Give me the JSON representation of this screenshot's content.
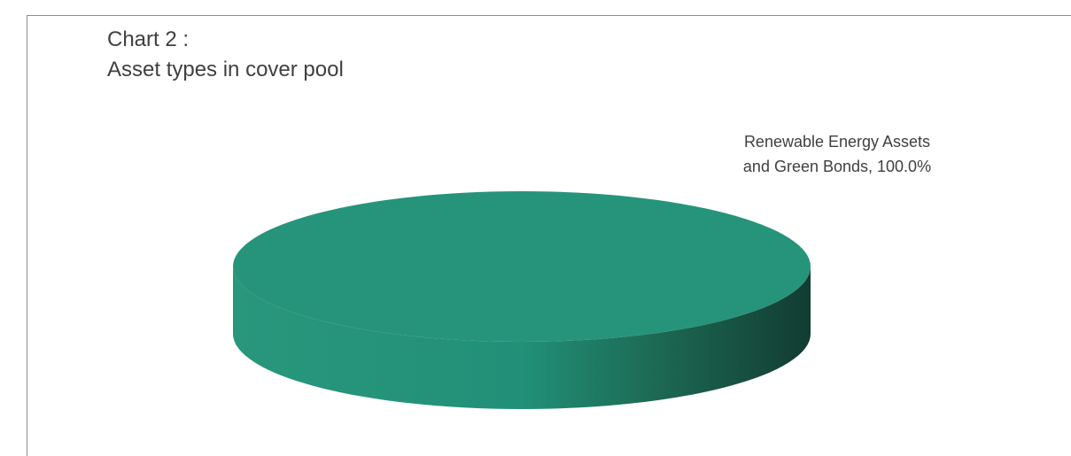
{
  "chart_data": {
    "type": "pie",
    "title_line1": "Chart 2 :",
    "title_line2": "Asset types in cover pool",
    "categories": [
      "Renewable Energy Assets and Green Bonds"
    ],
    "values": [
      100.0
    ],
    "labels": [
      {
        "line1": "Renewable Energy Assets",
        "line2": "and Green Bonds, 100.0%"
      }
    ],
    "legend": "none",
    "colors": {
      "top": "#26947a",
      "side_light": "#28977c",
      "side_dark": "#123c31",
      "text": "#404040",
      "frame": "#8c8c8c"
    }
  }
}
